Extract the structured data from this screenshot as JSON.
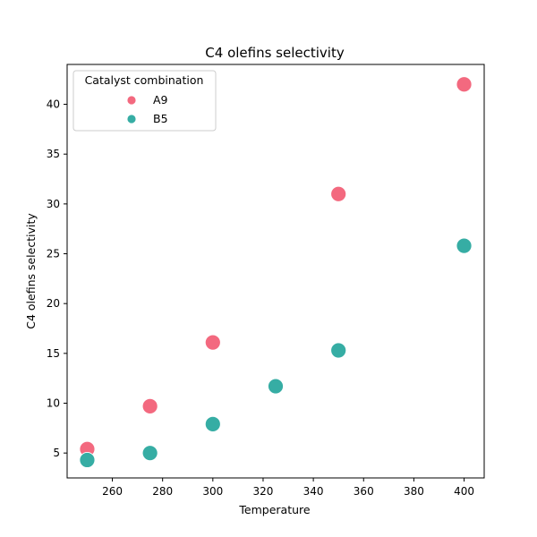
{
  "chart_data": {
    "type": "scatter",
    "title": "C4 olefins selectivity",
    "xlabel": "Temperature",
    "ylabel": "C4 olefins selectivity",
    "xlim": [
      242,
      408
    ],
    "ylim": [
      2.5,
      44
    ],
    "xticks": [
      260,
      280,
      300,
      320,
      340,
      360,
      380,
      400
    ],
    "yticks": [
      5,
      10,
      15,
      20,
      25,
      30,
      35,
      40
    ],
    "grid": false,
    "legend": {
      "title": "Catalyst combination",
      "placement": "top-left"
    },
    "series": [
      {
        "name": "A9",
        "color": "#f3697f",
        "points": [
          {
            "x": 250,
            "y": 5.4
          },
          {
            "x": 275,
            "y": 9.7
          },
          {
            "x": 300,
            "y": 16.1
          },
          {
            "x": 350,
            "y": 31.0
          },
          {
            "x": 400,
            "y": 42.0
          }
        ]
      },
      {
        "name": "B5",
        "color": "#36ada4",
        "points": [
          {
            "x": 250,
            "y": 4.3
          },
          {
            "x": 275,
            "y": 5.0
          },
          {
            "x": 300,
            "y": 7.9
          },
          {
            "x": 325,
            "y": 11.7
          },
          {
            "x": 350,
            "y": 15.3
          },
          {
            "x": 400,
            "y": 25.8
          }
        ]
      }
    ]
  }
}
